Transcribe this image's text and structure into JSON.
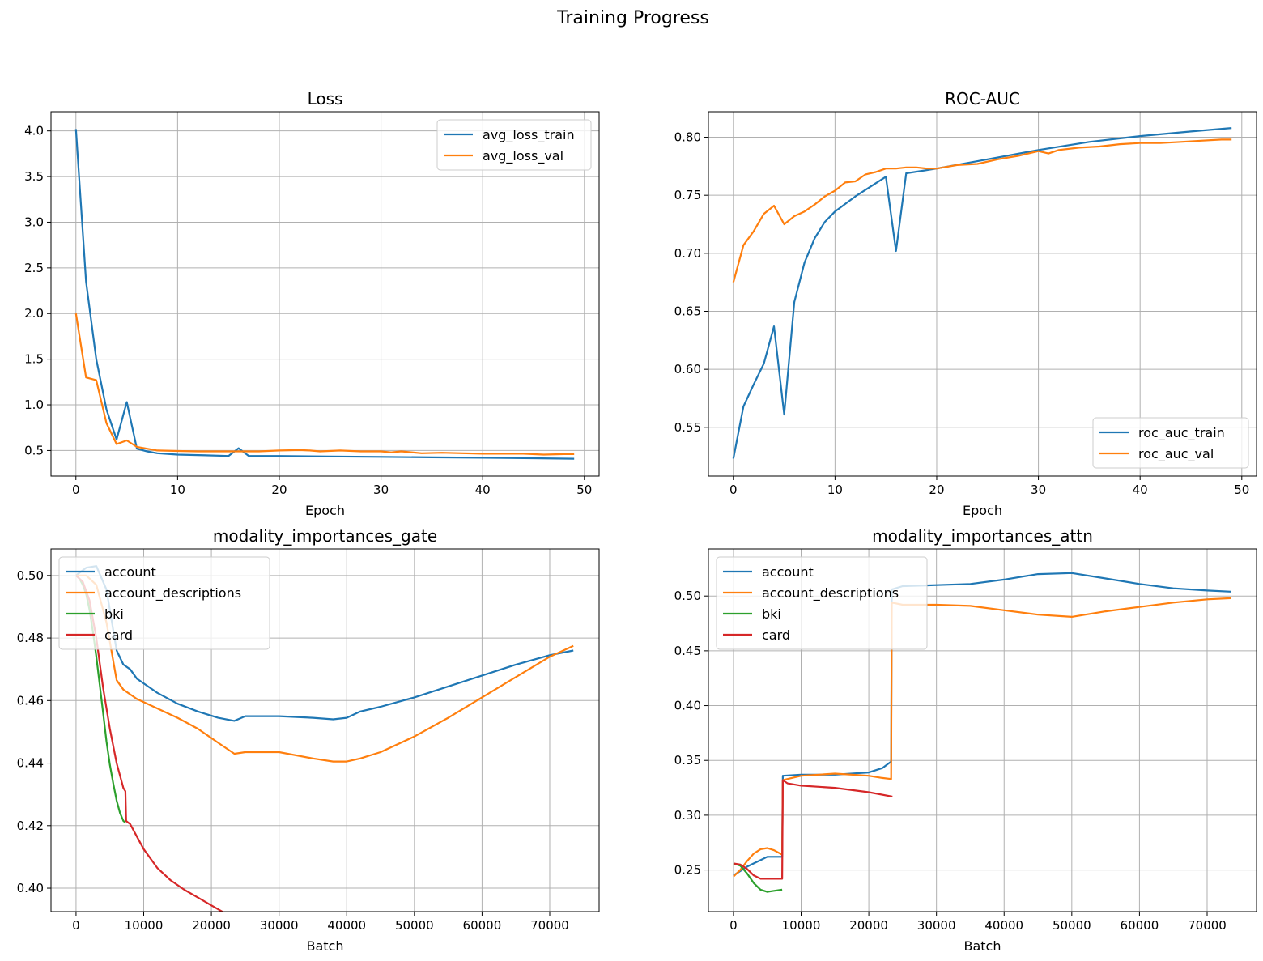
{
  "figure": {
    "suptitle": "Training Progress"
  },
  "colors": {
    "blue": "#1f77b4",
    "orange": "#ff7f0e",
    "green": "#2ca02c",
    "red": "#d62728",
    "grid": "#b0b0b0"
  },
  "chart_data": [
    {
      "id": "loss",
      "type": "line",
      "title": "Loss",
      "xlabel": "Epoch",
      "ylabel": "",
      "xlim": [
        -2.45,
        51.45
      ],
      "ylim": [
        0.22,
        4.21
      ],
      "xticks": [
        0,
        10,
        20,
        30,
        40,
        50
      ],
      "yticks": [
        0.5,
        1.0,
        1.5,
        2.0,
        2.5,
        3.0,
        3.5,
        4.0
      ],
      "xtick_labels": [
        "0",
        "10",
        "20",
        "30",
        "40",
        "50"
      ],
      "ytick_labels": [
        "0.5",
        "1.0",
        "1.5",
        "2.0",
        "2.5",
        "3.0",
        "3.5",
        "4.0"
      ],
      "grid": true,
      "legend": "upper right",
      "series": [
        {
          "name": "avg_loss_train",
          "color": "#1f77b4",
          "x": [
            0,
            1,
            2,
            3,
            4,
            5,
            6,
            7,
            8,
            10,
            12,
            15,
            16,
            17,
            20,
            25,
            30,
            35,
            40,
            45,
            49
          ],
          "y": [
            4.02,
            2.35,
            1.5,
            0.95,
            0.62,
            1.03,
            0.52,
            0.49,
            0.47,
            0.455,
            0.45,
            0.44,
            0.525,
            0.44,
            0.44,
            0.435,
            0.43,
            0.425,
            0.42,
            0.415,
            0.41
          ]
        },
        {
          "name": "avg_loss_val",
          "color": "#ff7f0e",
          "x": [
            0,
            1,
            2,
            3,
            4,
            5,
            6,
            7,
            8,
            10,
            12,
            14,
            16,
            18,
            20,
            22,
            23,
            24,
            26,
            28,
            30,
            31,
            32,
            34,
            36,
            38,
            40,
            42,
            44,
            46,
            48,
            49
          ],
          "y": [
            2.0,
            1.3,
            1.27,
            0.8,
            0.57,
            0.61,
            0.54,
            0.52,
            0.5,
            0.495,
            0.49,
            0.49,
            0.49,
            0.49,
            0.5,
            0.505,
            0.5,
            0.49,
            0.5,
            0.49,
            0.49,
            0.48,
            0.49,
            0.47,
            0.475,
            0.47,
            0.465,
            0.465,
            0.465,
            0.455,
            0.46,
            0.46
          ]
        }
      ]
    },
    {
      "id": "roc",
      "type": "line",
      "title": "ROC-AUC",
      "xlabel": "Epoch",
      "ylabel": "",
      "xlim": [
        -2.45,
        51.45
      ],
      "ylim": [
        0.508,
        0.822
      ],
      "xticks": [
        0,
        10,
        20,
        30,
        40,
        50
      ],
      "yticks": [
        0.55,
        0.6,
        0.65,
        0.7,
        0.75,
        0.8
      ],
      "xtick_labels": [
        "0",
        "10",
        "20",
        "30",
        "40",
        "50"
      ],
      "ytick_labels": [
        "0.55",
        "0.60",
        "0.65",
        "0.70",
        "0.75",
        "0.80"
      ],
      "grid": true,
      "legend": "lower right",
      "series": [
        {
          "name": "roc_auc_train",
          "color": "#1f77b4",
          "x": [
            0,
            1,
            2,
            3,
            4,
            5,
            6,
            7,
            8,
            9,
            10,
            12,
            15,
            16,
            17,
            20,
            25,
            30,
            35,
            40,
            45,
            49
          ],
          "y": [
            0.523,
            0.568,
            0.587,
            0.605,
            0.637,
            0.561,
            0.658,
            0.692,
            0.713,
            0.727,
            0.736,
            0.749,
            0.766,
            0.702,
            0.769,
            0.773,
            0.781,
            0.789,
            0.796,
            0.801,
            0.805,
            0.808
          ]
        },
        {
          "name": "roc_auc_val",
          "color": "#ff7f0e",
          "x": [
            0,
            1,
            2,
            3,
            4,
            5,
            6,
            7,
            8,
            9,
            10,
            11,
            12,
            13,
            14,
            15,
            16,
            17,
            18,
            19,
            20,
            22,
            24,
            26,
            28,
            30,
            31,
            32,
            34,
            36,
            38,
            40,
            42,
            44,
            46,
            48,
            49
          ],
          "y": [
            0.675,
            0.707,
            0.719,
            0.734,
            0.741,
            0.725,
            0.732,
            0.736,
            0.742,
            0.749,
            0.754,
            0.761,
            0.762,
            0.768,
            0.77,
            0.773,
            0.773,
            0.774,
            0.774,
            0.773,
            0.773,
            0.776,
            0.777,
            0.781,
            0.784,
            0.788,
            0.786,
            0.789,
            0.791,
            0.792,
            0.794,
            0.795,
            0.795,
            0.796,
            0.797,
            0.798,
            0.798
          ]
        }
      ]
    },
    {
      "id": "gate",
      "type": "line",
      "title": "modality_importances_gate",
      "xlabel": "Batch",
      "ylabel": "",
      "xlim": [
        -3700,
        77300
      ],
      "ylim": [
        0.3925,
        0.5085
      ],
      "xticks": [
        0,
        10000,
        20000,
        30000,
        40000,
        50000,
        60000,
        70000
      ],
      "yticks": [
        0.4,
        0.42,
        0.44,
        0.46,
        0.48,
        0.5
      ],
      "xtick_labels": [
        "0",
        "10000",
        "20000",
        "30000",
        "40000",
        "50000",
        "60000",
        "70000"
      ],
      "ytick_labels": [
        "0.40",
        "0.42",
        "0.44",
        "0.46",
        "0.48",
        "0.50"
      ],
      "grid": true,
      "legend": "upper left",
      "series": [
        {
          "name": "account",
          "color": "#1f77b4",
          "x": [
            0,
            1500,
            3000,
            4500,
            6000,
            7000,
            8000,
            9000,
            10000,
            12000,
            15000,
            18000,
            21000,
            23400,
            25000,
            30000,
            35000,
            38000,
            40000,
            42000,
            45000,
            50000,
            55000,
            60000,
            65000,
            70000,
            73500
          ],
          "y": [
            0.5,
            0.5025,
            0.503,
            0.4955,
            0.476,
            0.4715,
            0.47,
            0.467,
            0.4655,
            0.4625,
            0.459,
            0.4565,
            0.4545,
            0.4535,
            0.455,
            0.455,
            0.4545,
            0.454,
            0.4545,
            0.4565,
            0.458,
            0.461,
            0.4645,
            0.468,
            0.4715,
            0.4745,
            0.476
          ]
        },
        {
          "name": "account_descriptions",
          "color": "#ff7f0e",
          "x": [
            0,
            1500,
            3000,
            4500,
            6000,
            7000,
            8000,
            9000,
            10000,
            12000,
            15000,
            18000,
            21000,
            23400,
            25000,
            30000,
            35000,
            38000,
            40000,
            42000,
            45000,
            50000,
            55000,
            60000,
            65000,
            70000,
            73500
          ],
          "y": [
            0.5,
            0.5,
            0.497,
            0.485,
            0.4665,
            0.4635,
            0.462,
            0.4605,
            0.4595,
            0.4575,
            0.4545,
            0.451,
            0.4465,
            0.443,
            0.4435,
            0.4435,
            0.4415,
            0.4405,
            0.4405,
            0.4415,
            0.4435,
            0.4485,
            0.4545,
            0.461,
            0.4675,
            0.474,
            0.4775
          ]
        },
        {
          "name": "bki",
          "color": "#2ca02c",
          "x": [
            0,
            500,
            1000,
            1500,
            2000,
            2500,
            3000,
            3500,
            4000,
            4500,
            5000,
            5500,
            6000,
            6500,
            7000,
            7300
          ],
          "y": [
            0.5,
            0.499,
            0.497,
            0.494,
            0.489,
            0.482,
            0.474,
            0.465,
            0.456,
            0.447,
            0.4395,
            0.4335,
            0.428,
            0.424,
            0.4215,
            0.421
          ]
        },
        {
          "name": "card",
          "color": "#d62728",
          "x": [
            0,
            1000,
            2000,
            3000,
            4000,
            5000,
            6000,
            7000,
            7300,
            7400,
            8000,
            9000,
            10000,
            12000,
            14000,
            16000,
            18000,
            20000,
            22000,
            23500
          ],
          "y": [
            0.5,
            0.498,
            0.492,
            0.48,
            0.464,
            0.451,
            0.44,
            0.432,
            0.431,
            0.4215,
            0.4205,
            0.4165,
            0.4125,
            0.4065,
            0.4025,
            0.3995,
            0.397,
            0.3945,
            0.392,
            0.3905
          ]
        }
      ]
    },
    {
      "id": "attn",
      "type": "line",
      "title": "modality_importances_attn",
      "xlabel": "Batch",
      "ylabel": "",
      "xlim": [
        -3700,
        77300
      ],
      "ylim": [
        0.212,
        0.543
      ],
      "xticks": [
        0,
        10000,
        20000,
        30000,
        40000,
        50000,
        60000,
        70000
      ],
      "yticks": [
        0.25,
        0.3,
        0.35,
        0.4,
        0.45,
        0.5
      ],
      "xtick_labels": [
        "0",
        "10000",
        "20000",
        "30000",
        "40000",
        "50000",
        "60000",
        "70000"
      ],
      "ytick_labels": [
        "0.25",
        "0.30",
        "0.35",
        "0.40",
        "0.45",
        "0.50"
      ],
      "grid": true,
      "legend": "upper left",
      "series": [
        {
          "name": "account",
          "color": "#1f77b4",
          "x": [
            0,
            1000,
            2000,
            3000,
            4000,
            5000,
            6000,
            7200,
            7300,
            10000,
            15000,
            20000,
            22000,
            23300,
            23400,
            25000,
            30000,
            35000,
            40000,
            45000,
            50000,
            55000,
            60000,
            65000,
            70000,
            73500
          ],
          "y": [
            0.245,
            0.249,
            0.253,
            0.256,
            0.259,
            0.262,
            0.262,
            0.262,
            0.336,
            0.337,
            0.337,
            0.339,
            0.343,
            0.349,
            0.506,
            0.509,
            0.51,
            0.511,
            0.515,
            0.52,
            0.521,
            0.516,
            0.511,
            0.507,
            0.505,
            0.504
          ]
        },
        {
          "name": "account_descriptions",
          "color": "#ff7f0e",
          "x": [
            0,
            1000,
            2000,
            3000,
            4000,
            5000,
            6000,
            7200,
            7300,
            10000,
            15000,
            20000,
            22000,
            23300,
            23400,
            25000,
            30000,
            35000,
            40000,
            45000,
            50000,
            55000,
            60000,
            65000,
            70000,
            73500
          ],
          "y": [
            0.244,
            0.25,
            0.258,
            0.265,
            0.269,
            0.27,
            0.268,
            0.264,
            0.332,
            0.336,
            0.338,
            0.336,
            0.334,
            0.333,
            0.494,
            0.492,
            0.492,
            0.491,
            0.487,
            0.483,
            0.481,
            0.486,
            0.49,
            0.494,
            0.497,
            0.498
          ]
        },
        {
          "name": "bki",
          "color": "#2ca02c",
          "x": [
            0,
            1000,
            2000,
            3000,
            4000,
            5000,
            6000,
            7200
          ],
          "y": [
            0.256,
            0.254,
            0.247,
            0.238,
            0.232,
            0.23,
            0.231,
            0.232
          ]
        },
        {
          "name": "card",
          "color": "#d62728",
          "x": [
            0,
            1000,
            2000,
            3000,
            4000,
            5000,
            6000,
            7200,
            7300,
            8000,
            10000,
            15000,
            20000,
            23500
          ],
          "y": [
            0.256,
            0.255,
            0.251,
            0.245,
            0.242,
            0.242,
            0.242,
            0.242,
            0.332,
            0.329,
            0.327,
            0.325,
            0.321,
            0.317
          ]
        }
      ]
    }
  ]
}
